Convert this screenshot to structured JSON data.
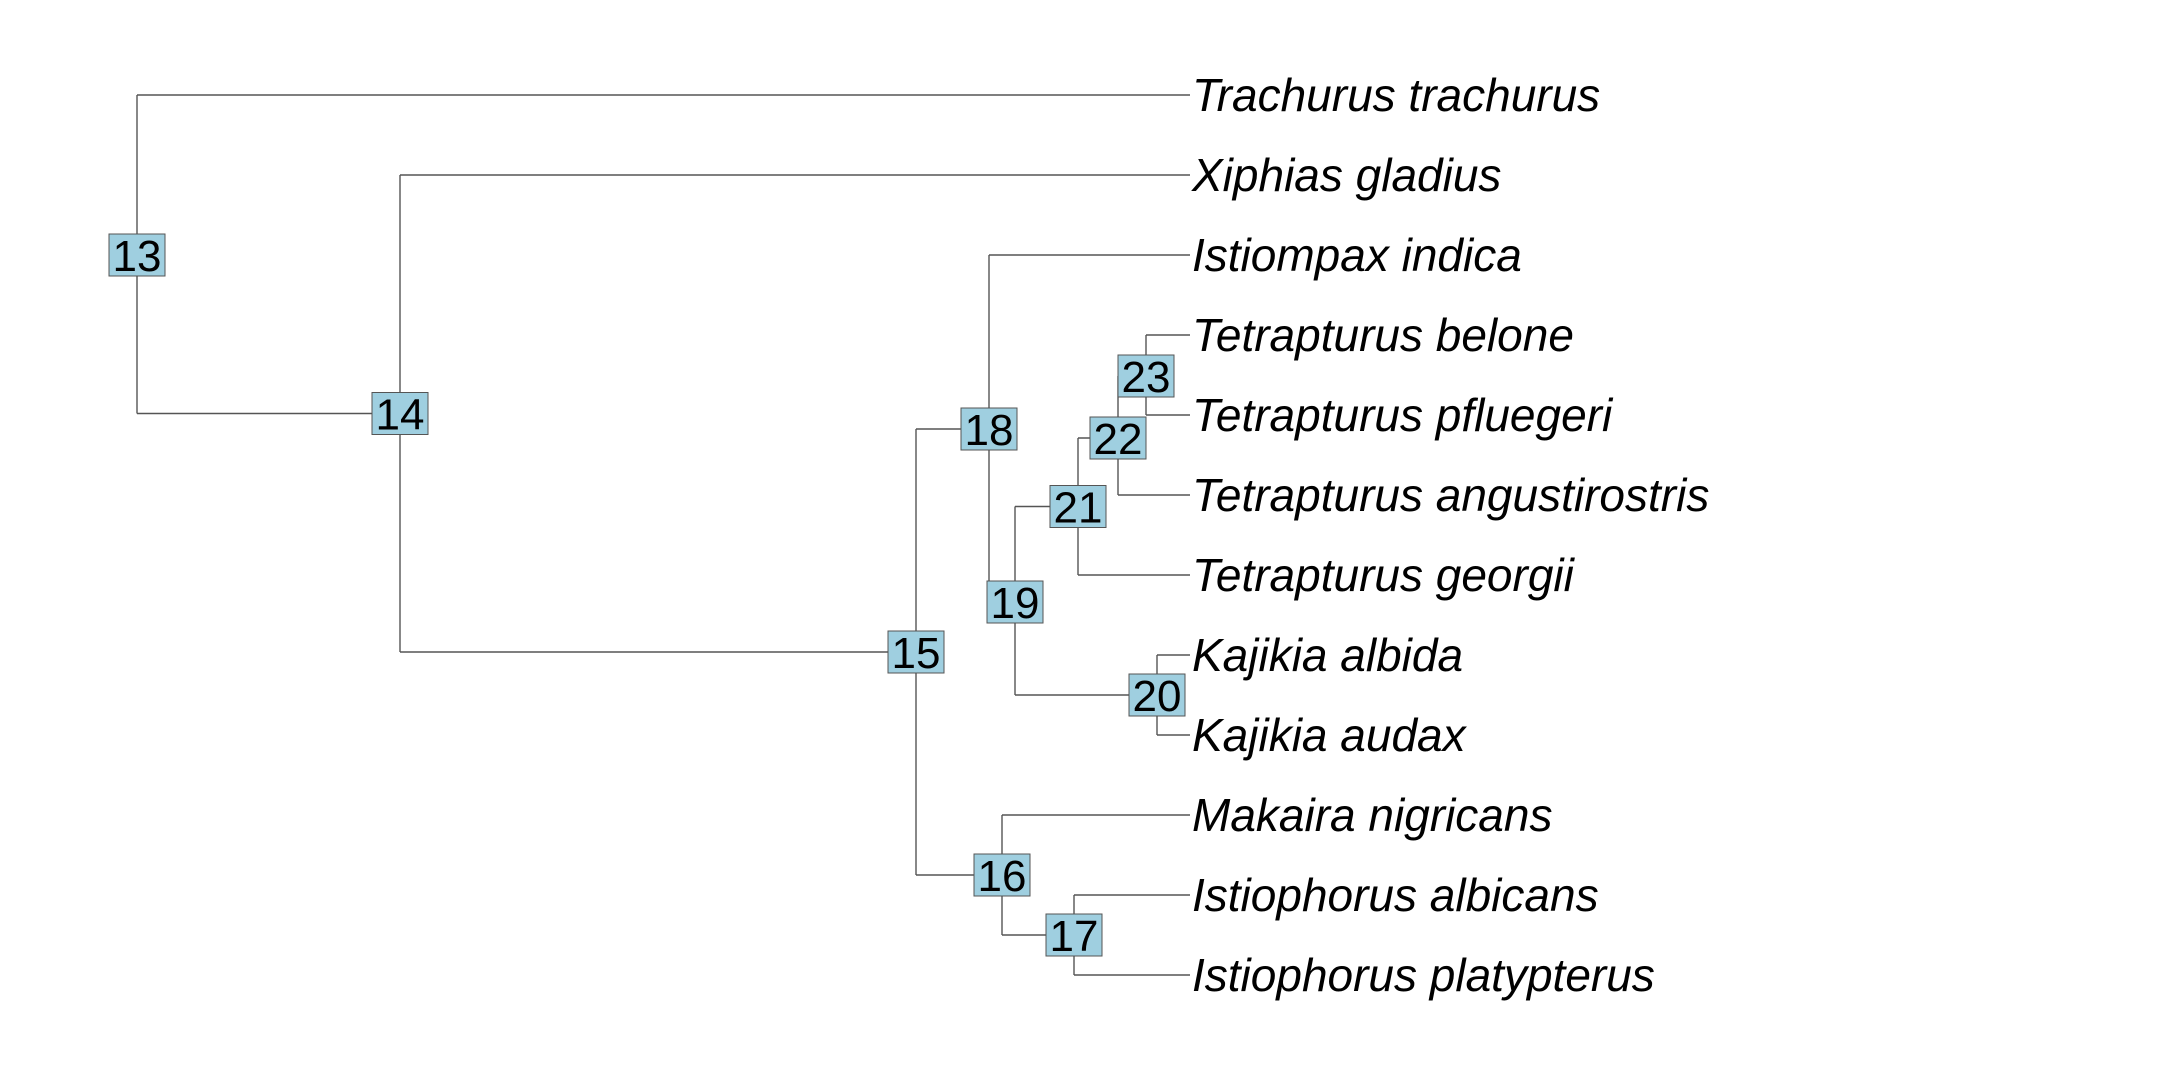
{
  "tree": {
    "box_color": "#9fcfe0",
    "line_color": "#555555",
    "tips": [
      {
        "id": "trachurus",
        "label": "Trachurus trachurus"
      },
      {
        "id": "xiphias",
        "label": "Xiphias gladius"
      },
      {
        "id": "istiompax",
        "label": "Istiompax indica"
      },
      {
        "id": "belone",
        "label": "Tetrapturus belone"
      },
      {
        "id": "pfluegeri",
        "label": "Tetrapturus pfluegeri"
      },
      {
        "id": "angustirostris",
        "label": "Tetrapturus angustirostris"
      },
      {
        "id": "georgii",
        "label": "Tetrapturus georgii"
      },
      {
        "id": "albida",
        "label": "Kajikia albida"
      },
      {
        "id": "audax",
        "label": "Kajikia audax"
      },
      {
        "id": "makaira",
        "label": "Makaira nigricans"
      },
      {
        "id": "albicans",
        "label": "Istiophorus albicans"
      },
      {
        "id": "platypterus",
        "label": "Istiophorus platypterus"
      }
    ],
    "nodes": [
      {
        "id": "n13",
        "label": "13",
        "children": [
          "trachurus",
          "n14"
        ]
      },
      {
        "id": "n14",
        "label": "14",
        "children": [
          "xiphias",
          "n15"
        ]
      },
      {
        "id": "n15",
        "label": "15",
        "children": [
          "n18",
          "n16"
        ]
      },
      {
        "id": "n18",
        "label": "18",
        "children": [
          "istiompax",
          "n19"
        ]
      },
      {
        "id": "n19",
        "label": "19",
        "children": [
          "n21",
          "n20"
        ]
      },
      {
        "id": "n21",
        "label": "21",
        "children": [
          "n22",
          "georgii"
        ]
      },
      {
        "id": "n22",
        "label": "22",
        "children": [
          "n23",
          "angustirostris"
        ]
      },
      {
        "id": "n23",
        "label": "23",
        "children": [
          "belone",
          "pfluegeri"
        ]
      },
      {
        "id": "n20",
        "label": "20",
        "children": [
          "albida",
          "audax"
        ]
      },
      {
        "id": "n16",
        "label": "16",
        "children": [
          "makaira",
          "n17"
        ]
      },
      {
        "id": "n17",
        "label": "17",
        "children": [
          "albicans",
          "platypterus"
        ]
      }
    ]
  }
}
